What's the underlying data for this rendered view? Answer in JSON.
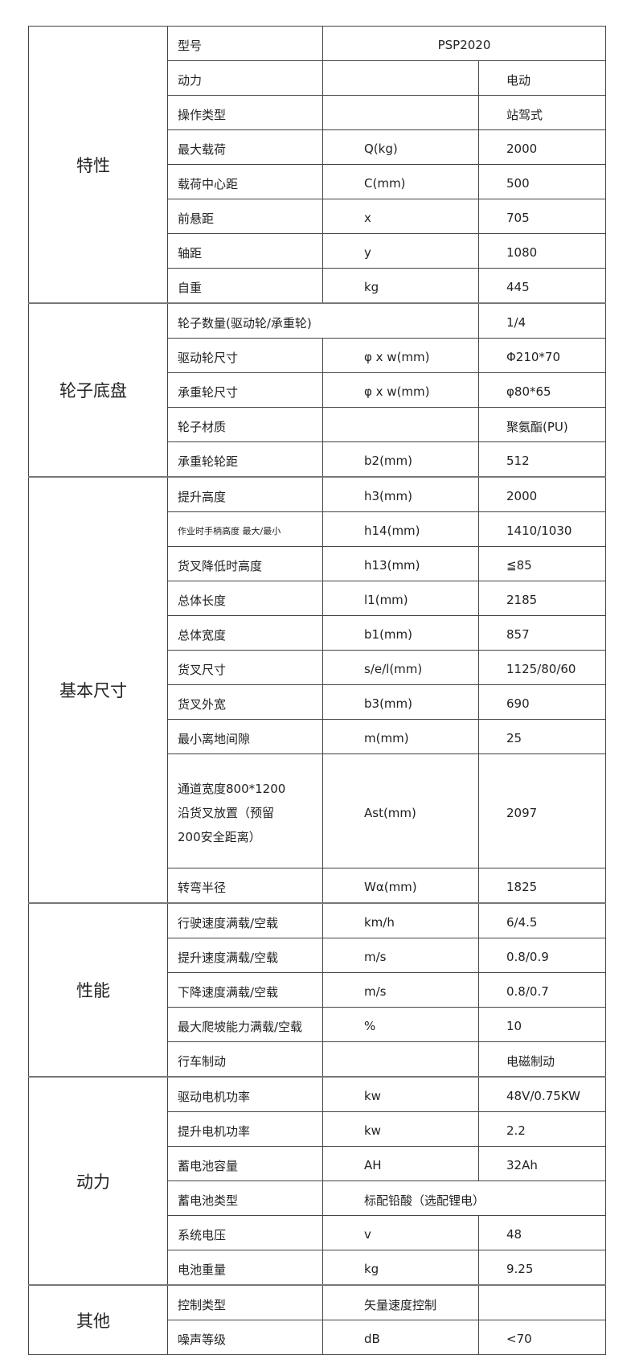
{
  "sections": [
    {
      "name": "特性",
      "rows": [
        {
          "label": "型号",
          "value": "PSP2020",
          "merge": "unit-value"
        },
        {
          "label": "动力",
          "unit": "",
          "value": "电动"
        },
        {
          "label": "操作类型",
          "unit": "",
          "value": "站驾式"
        },
        {
          "label": "最大载荷",
          "unit": "Q(kg)",
          "value": "2000"
        },
        {
          "label": "载荷中心距",
          "unit": "C(mm)",
          "value": "500"
        },
        {
          "label": "前悬距",
          "unit": "x",
          "value": "705"
        },
        {
          "label": "轴距",
          "unit": "y",
          "value": "1080"
        },
        {
          "label": "自重",
          "unit": "kg",
          "value": "445"
        }
      ]
    },
    {
      "name": "轮子底盘",
      "rows": [
        {
          "label": "轮子数量(驱动轮/承重轮)",
          "value": "1/4",
          "merge": "label-unit"
        },
        {
          "label": "驱动轮尺寸",
          "unit": "φ x w(mm)",
          "value": "Φ210*70"
        },
        {
          "label": "承重轮尺寸",
          "unit": "φ x w(mm)",
          "value": "φ80*65"
        },
        {
          "label": "轮子材质",
          "unit": "",
          "value": "聚氨酯(PU)"
        },
        {
          "label": "承重轮轮距",
          "unit": "b2(mm)",
          "value": "512"
        }
      ]
    },
    {
      "name": "基本尺寸",
      "rows": [
        {
          "label": "提升高度",
          "unit": "h3(mm)",
          "value": "2000"
        },
        {
          "label": "作业时手柄高度  最大/最小",
          "unit": "h14(mm)",
          "value": "1410/1030",
          "small": true
        },
        {
          "label": "货叉降低时高度",
          "unit": "h13(mm)",
          "value": "≦85"
        },
        {
          "label": "总体长度",
          "unit": "l1(mm)",
          "value": "2185"
        },
        {
          "label": "总体宽度",
          "unit": "b1(mm)",
          "value": "857"
        },
        {
          "label": "货叉尺寸",
          "unit": "s/e/l(mm)",
          "value": "1125/80/60"
        },
        {
          "label": "货叉外宽",
          "unit": "b3(mm)",
          "value": "690"
        },
        {
          "label": "最小离地间隙",
          "unit": "m(mm)",
          "value": "25"
        },
        {
          "label": "通道宽度800*1200\n沿货叉放置（预留\n200安全距离）",
          "unit": "Ast(mm)",
          "value": "2097"
        },
        {
          "label": "转弯半径",
          "unit": "Wα(mm)",
          "value": "1825"
        }
      ]
    },
    {
      "name": "性能",
      "rows": [
        {
          "label": "行驶速度满载/空载",
          "unit": "km/h",
          "value": "6/4.5"
        },
        {
          "label": "提升速度满载/空载",
          "unit": "m/s",
          "value": "0.8/0.9"
        },
        {
          "label": "下降速度满载/空载",
          "unit": "m/s",
          "value": "0.8/0.7"
        },
        {
          "label": "最大爬坡能力满载/空载",
          "unit": "%",
          "value": "10"
        },
        {
          "label": "行车制动",
          "unit": "",
          "value": "电磁制动"
        }
      ]
    },
    {
      "name": "动力",
      "rows": [
        {
          "label": "驱动电机功率",
          "unit": "kw",
          "value": "48V/0.75KW"
        },
        {
          "label": "提升电机功率",
          "unit": "kw",
          "value": "2.2"
        },
        {
          "label": "蓄电池容量",
          "unit": "AH",
          "value": "32Ah"
        },
        {
          "label": "蓄电池类型",
          "unit": "标配铅酸（选配锂电）",
          "merge": "unit-value-left"
        },
        {
          "label": "系统电压",
          "unit": "v",
          "value": "48"
        },
        {
          "label": "电池重量",
          "unit": "kg",
          "value": "9.25"
        }
      ]
    },
    {
      "name": "其他",
      "rows": [
        {
          "label": "控制类型",
          "unit": "矢量速度控制",
          "value": ""
        },
        {
          "label": "噪声等级",
          "unit": "dB",
          "value": "<70"
        }
      ]
    }
  ]
}
